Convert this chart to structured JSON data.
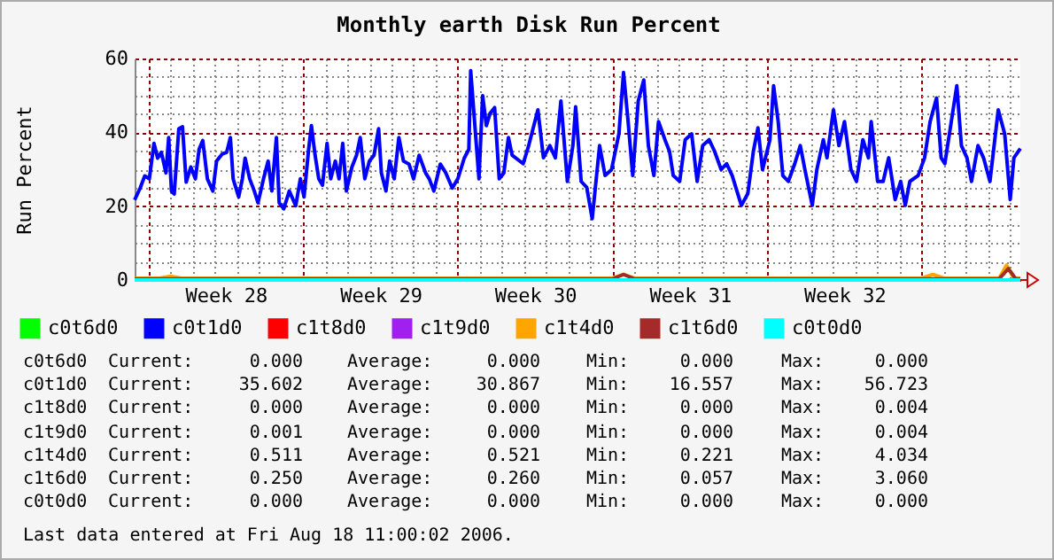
{
  "chart_data": {
    "type": "line",
    "title": "Monthly earth Disk Run Percent",
    "ylabel": "Run Percent",
    "xlim": [
      "2006-07-09T09:00",
      "2006-08-18T11:00"
    ],
    "xticks": [
      {
        "value": "2006-07-10",
        "label": null
      },
      {
        "value": "2006-07-11",
        "label": null
      },
      {
        "value": "2006-07-12",
        "label": null
      },
      {
        "value": "2006-07-13",
        "label": null
      },
      {
        "value": "2006-07-14",
        "label": null
      },
      {
        "value": "2006-07-15",
        "label": null
      },
      {
        "value": "2006-07-16",
        "label": null
      },
      {
        "value": "2006-07-17",
        "label": null
      },
      {
        "value": "2006-07-18",
        "label": null
      },
      {
        "value": "2006-07-19",
        "label": null
      },
      {
        "value": "2006-07-20",
        "label": null
      },
      {
        "value": "2006-07-21",
        "label": null
      },
      {
        "value": "2006-07-22",
        "label": null
      },
      {
        "value": "2006-07-23",
        "label": null
      },
      {
        "value": "2006-07-24",
        "label": null
      },
      {
        "value": "2006-07-25",
        "label": null
      },
      {
        "value": "2006-07-26",
        "label": null
      },
      {
        "value": "2006-07-27",
        "label": null
      },
      {
        "value": "2006-07-28",
        "label": null
      },
      {
        "value": "2006-07-29",
        "label": null
      },
      {
        "value": "2006-07-30",
        "label": null
      },
      {
        "value": "2006-07-31",
        "label": null
      },
      {
        "value": "2006-08-01",
        "label": null
      },
      {
        "value": "2006-08-02",
        "label": null
      },
      {
        "value": "2006-08-03",
        "label": null
      },
      {
        "value": "2006-08-04",
        "label": null
      },
      {
        "value": "2006-08-05",
        "label": null
      },
      {
        "value": "2006-08-06",
        "label": null
      },
      {
        "value": "2006-08-07",
        "label": null
      },
      {
        "value": "2006-08-08",
        "label": null
      },
      {
        "value": "2006-08-09",
        "label": null
      },
      {
        "value": "2006-08-10",
        "label": null
      },
      {
        "value": "2006-08-11",
        "label": null
      },
      {
        "value": "2006-08-12",
        "label": null
      },
      {
        "value": "2006-08-13",
        "label": null
      },
      {
        "value": "2006-08-14",
        "label": null
      },
      {
        "value": "2006-08-15",
        "label": null
      },
      {
        "value": "2006-08-16",
        "label": null
      },
      {
        "value": "2006-08-17",
        "label": null
      },
      {
        "value": "2006-08-18",
        "label": null
      },
      {
        "value": "2006-07-13T12:00",
        "label": "Week 28"
      },
      {
        "value": "2006-07-20T12:00",
        "label": "Week 29"
      },
      {
        "value": "2006-07-27T12:00",
        "label": "Week 30"
      },
      {
        "value": "2006-08-03T12:00",
        "label": "Week 31"
      },
      {
        "value": "2006-08-10T12:00",
        "label": "Week 32"
      }
    ],
    "ylim": [
      0,
      60
    ],
    "yticks": [
      0,
      {
        "value": 5,
        "label": null
      },
      {
        "value": 10,
        "label": null
      },
      {
        "value": 15,
        "label": null
      },
      20,
      {
        "value": 25,
        "label": null
      },
      {
        "value": 30,
        "label": null
      },
      {
        "value": 35,
        "label": null
      },
      40,
      {
        "value": 45,
        "label": null
      },
      {
        "value": 50,
        "label": null
      },
      {
        "value": 55,
        "label": null
      },
      60
    ],
    "grid": true,
    "legend": "bottom",
    "marker": "none",
    "line_style": "solid",
    "series": [
      {
        "name": "c0t6d0",
        "color": "#00ff00"
      },
      {
        "name": "c0t1d0",
        "color": "#0000ff",
        "x": [
          "2006-07-09T09:00",
          "2006-07-09T15:00",
          "2006-07-09T20:00",
          "2006-07-10T01:00",
          "2006-07-10T06:00",
          "2006-07-10T10:00",
          "2006-07-10T14:00",
          "2006-07-10T19:00",
          "2006-07-10T22:00",
          "2006-07-11T01:00",
          "2006-07-11T04:00",
          "2006-07-11T09:00",
          "2006-07-11T13:00",
          "2006-07-11T17:00",
          "2006-07-11T22:00",
          "2006-07-12T03:00",
          "2006-07-12T07:00",
          "2006-07-12T11:00",
          "2006-07-12T16:00",
          "2006-07-12T22:00",
          "2006-07-13T02:00",
          "2006-07-13T08:00",
          "2006-07-13T13:00",
          "2006-07-13T17:00",
          "2006-07-13T20:00",
          "2006-07-14T02:00",
          "2006-07-14T06:00",
          "2006-07-14T09:00",
          "2006-07-14T14:00",
          "2006-07-14T19:00",
          "2006-07-14T23:00",
          "2006-07-15T05:00",
          "2006-07-15T10:00",
          "2006-07-15T14:00",
          "2006-07-15T19:00",
          "2006-07-15T22:00",
          "2006-07-16T03:00",
          "2006-07-16T09:00",
          "2006-07-16T16:00",
          "2006-07-16T21:00",
          "2006-07-17T01:00",
          "2006-07-17T06:00",
          "2006-07-17T09:00",
          "2006-07-17T13:00",
          "2006-07-17T17:00",
          "2006-07-17T21:00",
          "2006-07-18T02:00",
          "2006-07-18T06:00",
          "2006-07-18T11:00",
          "2006-07-18T15:00",
          "2006-07-18T19:00",
          "2006-07-18T23:00",
          "2006-07-19T05:00",
          "2006-07-19T10:00",
          "2006-07-19T14:00",
          "2006-07-19T19:00",
          "2006-07-20T00:00",
          "2006-07-20T05:00",
          "2006-07-20T10:00",
          "2006-07-20T13:00",
          "2006-07-20T18:00",
          "2006-07-20T22:00",
          "2006-07-21T03:00",
          "2006-07-21T08:00",
          "2006-07-21T13:00",
          "2006-07-21T19:00",
          "2006-07-22T00:00",
          "2006-07-22T06:00",
          "2006-07-22T13:00",
          "2006-07-22T17:00",
          "2006-07-22T22:00",
          "2006-07-23T05:00",
          "2006-07-23T11:00",
          "2006-07-23T18:00",
          "2006-07-24T00:00",
          "2006-07-24T07:00",
          "2006-07-24T12:00",
          "2006-07-24T14:00",
          "2006-07-24T23:00",
          "2006-07-25T03:00",
          "2006-07-25T07:00",
          "2006-07-25T11:00",
          "2006-07-25T16:00",
          "2006-07-25T21:00",
          "2006-07-26T02:00",
          "2006-07-26T07:00",
          "2006-07-26T11:00",
          "2006-07-26T23:00",
          "2006-07-27T05:00",
          "2006-07-27T15:00",
          "2006-07-27T21:00",
          "2006-07-28T04:00",
          "2006-07-28T10:00",
          "2006-07-28T16:00",
          "2006-07-28T23:00",
          "2006-07-29T05:00",
          "2006-07-29T08:00",
          "2006-07-29T14:00",
          "2006-07-29T20:00",
          "2006-07-30T02:00",
          "2006-07-30T10:00",
          "2006-07-30T16:00",
          "2006-07-30T23:00",
          "2006-07-31T07:00",
          "2006-07-31T12:00",
          "2006-07-31T17:00",
          "2006-07-31T22:00",
          "2006-08-01T04:00",
          "2006-08-01T10:00",
          "2006-08-01T15:00",
          "2006-08-01T21:00",
          "2006-08-02T02:00",
          "2006-08-02T09:00",
          "2006-08-02T14:00",
          "2006-08-02T18:00",
          "2006-08-03T01:00",
          "2006-08-03T07:00",
          "2006-08-03T14:00",
          "2006-08-03T20:00",
          "2006-08-04T02:00",
          "2006-08-04T09:00",
          "2006-08-04T15:00",
          "2006-08-04T22:00",
          "2006-08-05T04:00",
          "2006-08-05T10:00",
          "2006-08-05T20:00",
          "2006-08-06T03:00",
          "2006-08-06T09:00",
          "2006-08-06T14:00",
          "2006-08-06T19:00",
          "2006-08-07T03:00",
          "2006-08-07T07:00",
          "2006-08-07T12:00",
          "2006-08-07T17:00",
          "2006-08-07T23:00",
          "2006-08-08T06:00",
          "2006-08-08T12:00",
          "2006-08-08T17:00",
          "2006-08-09T01:00",
          "2006-08-09T06:00",
          "2006-08-09T13:00",
          "2006-08-09T17:00",
          "2006-08-10T00:00",
          "2006-08-10T06:00",
          "2006-08-10T12:00",
          "2006-08-10T19:00",
          "2006-08-11T01:00",
          "2006-08-11T08:00",
          "2006-08-11T14:00",
          "2006-08-11T17:00",
          "2006-08-12T00:00",
          "2006-08-12T06:00",
          "2006-08-12T12:00",
          "2006-08-12T19:00",
          "2006-08-13T01:00",
          "2006-08-13T06:00",
          "2006-08-13T11:00",
          "2006-08-13T20:00",
          "2006-08-14T03:00",
          "2006-08-14T09:00",
          "2006-08-14T16:00",
          "2006-08-14T21:00",
          "2006-08-15T01:00",
          "2006-08-15T08:00",
          "2006-08-15T14:00",
          "2006-08-15T19:00",
          "2006-08-16T01:00",
          "2006-08-16T06:00",
          "2006-08-16T13:00",
          "2006-08-16T19:00",
          "2006-08-17T02:00",
          "2006-08-17T11:00",
          "2006-08-17T18:00",
          "2006-08-18T00:00",
          "2006-08-18T04:00",
          "2006-08-18T11:00"
        ],
        "values": [
          21.7,
          24.9,
          28.2,
          27.4,
          37.0,
          33.0,
          34.6,
          29.0,
          38.6,
          24.1,
          23.3,
          41.0,
          41.5,
          26.5,
          30.6,
          27.4,
          35.4,
          37.8,
          27.4,
          24.1,
          32.2,
          34.1,
          34.6,
          38.6,
          27.4,
          22.5,
          27.4,
          33.0,
          27.4,
          24.1,
          20.9,
          27.4,
          32.2,
          24.1,
          38.6,
          20.9,
          19.3,
          24.1,
          20.1,
          27.4,
          22.5,
          35.4,
          41.8,
          33.8,
          27.4,
          25.7,
          37.0,
          27.4,
          32.2,
          27.4,
          37.0,
          24.1,
          30.6,
          33.8,
          38.6,
          27.4,
          32.2,
          33.8,
          41.0,
          29.0,
          24.1,
          32.2,
          27.4,
          38.6,
          32.2,
          31.4,
          27.4,
          33.8,
          29.0,
          27.4,
          24.1,
          31.4,
          29.0,
          24.9,
          27.4,
          33.0,
          35.4,
          56.7,
          27.4,
          49.9,
          41.8,
          45.1,
          46.7,
          27.4,
          29.0,
          38.6,
          33.8,
          31.5,
          36.4,
          46.1,
          33.1,
          36.4,
          33.1,
          48.5,
          26.7,
          36.4,
          46.9,
          26.7,
          25.1,
          16.6,
          36.4,
          28.3,
          29.9,
          39.6,
          56.2,
          42.9,
          28.3,
          48.5,
          54.2,
          36.4,
          28.3,
          42.9,
          38.0,
          34.8,
          28.3,
          26.7,
          38.0,
          39.6,
          26.7,
          36.4,
          38.0,
          34.8,
          29.9,
          31.5,
          28.3,
          20.2,
          23.4,
          34.8,
          41.2,
          29.9,
          38.0,
          52.6,
          42.9,
          28.3,
          26.7,
          31.5,
          36.4,
          29.9,
          20.2,
          29.9,
          38.0,
          33.1,
          46.1,
          36.4,
          42.9,
          29.9,
          26.7,
          38.0,
          33.1,
          42.9,
          26.7,
          26.7,
          33.1,
          21.8,
          26.7,
          20.2,
          26.7,
          28.3,
          33.1,
          42.9,
          49.3,
          33.1,
          31.5,
          42.9,
          52.6,
          36.4,
          33.1,
          26.7,
          36.4,
          33.1,
          26.7,
          46.1,
          39.6,
          21.8,
          33.1,
          35.6
        ]
      },
      {
        "name": "c1t8d0",
        "color": "#ff0000"
      },
      {
        "name": "c1t9d0",
        "color": "#a020f0"
      },
      {
        "name": "c1t4d0",
        "color": "#ffa500",
        "x": [
          "2006-07-09T09:00",
          "2006-07-10T12:00",
          "2006-07-11T00:00",
          "2006-07-11T12:00",
          "2006-07-31T00:00",
          "2006-07-31T12:00",
          "2006-08-01T00:00",
          "2006-08-14T00:00",
          "2006-08-14T12:00",
          "2006-08-15T00:00",
          "2006-08-17T12:00",
          "2006-08-17T20:00",
          "2006-08-18T04:00",
          "2006-08-18T11:00"
        ],
        "values": [
          0.5,
          0.5,
          1.0,
          0.5,
          0.5,
          1.5,
          0.5,
          0.5,
          1.5,
          0.5,
          0.5,
          4.0,
          0.5,
          0.5
        ]
      },
      {
        "name": "c1t6d0",
        "color": "#a52a2a",
        "x": [
          "2006-07-09T09:00",
          "2006-07-31T00:00",
          "2006-07-31T12:00",
          "2006-08-01T00:00",
          "2006-08-17T12:00",
          "2006-08-17T22:00",
          "2006-08-18T06:00",
          "2006-08-18T11:00"
        ],
        "values": [
          0.3,
          0.3,
          1.5,
          0.3,
          0.3,
          3.1,
          0.3,
          0.3
        ]
      },
      {
        "name": "c0t0d0",
        "color": "#00ffff",
        "x": [
          "2006-07-09T09:00",
          "2006-08-18T11:00"
        ],
        "values": [
          0,
          0
        ]
      }
    ],
    "annotations": [
      "c0t6d0 Current: 0.000 Average: 0.000 Min: 0.000 Max: 0.000",
      "c0t1d0 Current: 35.602 Average: 30.867 Min: 16.557 Max: 56.723",
      "c1t8d0 Current: 0.000 Average: 0.000 Min: 0.000 Max: 0.004",
      "c1t9d0 Current: 0.001 Average: 0.000 Min: 0.000 Max: 0.004",
      "c1t4d0 Current: 0.511 Average: 0.521 Min: 0.221 Max: 4.034",
      "c1t6d0 Current: 0.250 Average: 0.260 Min: 0.057 Max: 3.060",
      "c0t0d0 Current: 0.000 Average: 0.000 Min: 0.000 Max: 0.000",
      "Last data entered at Fri Aug 18 11:00:02 2006."
    ]
  }
}
